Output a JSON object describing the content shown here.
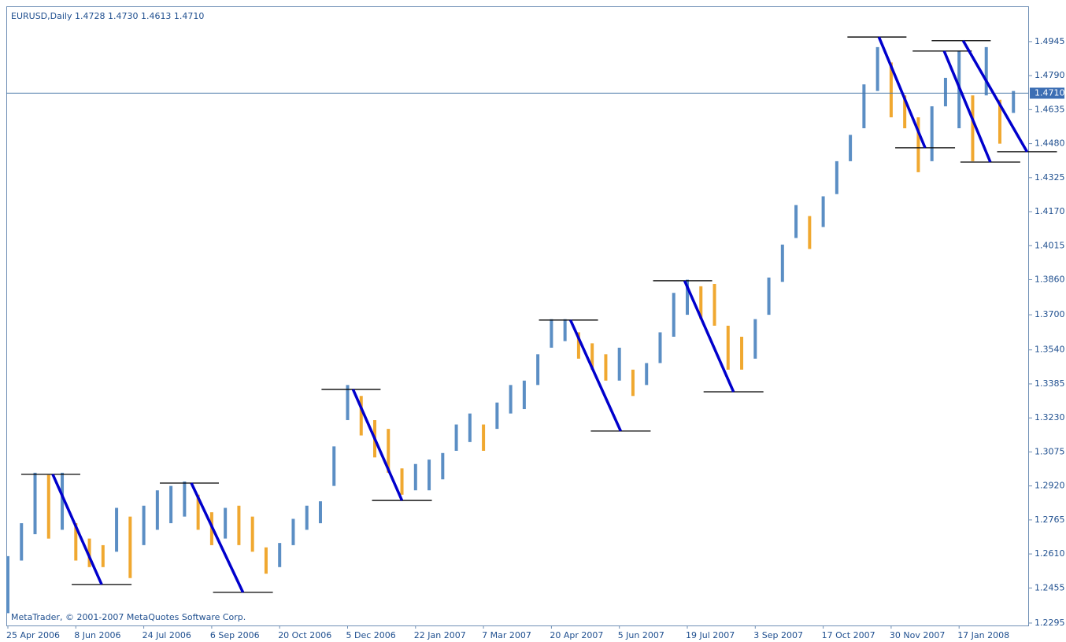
{
  "chart_data": {
    "type": "hlbar",
    "title": "EURUSD,Daily  1.4728 1.4730 1.4613 1.4710",
    "footer": "MetaTrader, © 2001-2007 MetaQuotes Software Corp.",
    "up_color": "#5b8ec4",
    "down_color": "#f0a830",
    "channel_color": "#0000cc",
    "level_color": "#000000",
    "categories": [
      "25 Apr 2006",
      null,
      null,
      null,
      null,
      "8 Jun 2006",
      null,
      null,
      null,
      null,
      "24 Jul 2006",
      null,
      null,
      null,
      null,
      "6 Sep 2006",
      null,
      null,
      null,
      null,
      "20 Oct 2006",
      null,
      null,
      null,
      null,
      "5 Dec 2006",
      null,
      null,
      null,
      null,
      "22 Jan 2007",
      null,
      null,
      null,
      null,
      "7 Mar 2007",
      null,
      null,
      null,
      null,
      "20 Apr 2007",
      null,
      null,
      null,
      null,
      "5 Jun 2007",
      null,
      null,
      null,
      null,
      "19 Jul 2007",
      null,
      null,
      null,
      null,
      "3 Sep 2007",
      null,
      null,
      null,
      null,
      "17 Oct 2007",
      null,
      null,
      null,
      null,
      "30 Nov 2007",
      null,
      null,
      null,
      null,
      "17 Jan 2008",
      null,
      null,
      null,
      null
    ],
    "high": [
      1.26,
      1.275,
      1.298,
      1.297,
      1.298,
      1.275,
      1.268,
      1.265,
      1.282,
      1.278,
      1.283,
      1.29,
      1.292,
      1.294,
      1.288,
      1.28,
      1.282,
      1.283,
      1.278,
      1.264,
      1.266,
      1.277,
      1.283,
      1.285,
      1.31,
      1.338,
      1.333,
      1.322,
      1.318,
      1.3,
      1.302,
      1.304,
      1.307,
      1.32,
      1.325,
      1.32,
      1.33,
      1.338,
      1.34,
      1.352,
      1.368,
      1.368,
      1.362,
      1.357,
      1.352,
      1.355,
      1.345,
      1.348,
      1.362,
      1.38,
      1.386,
      1.383,
      1.384,
      1.365,
      1.36,
      1.368,
      1.387,
      1.402,
      1.42,
      1.415,
      1.424,
      1.44,
      1.452,
      1.475,
      1.492,
      1.485,
      1.47,
      1.46,
      1.465,
      1.478,
      1.49,
      1.47,
      1.492,
      1.468,
      1.472
    ],
    "low": [
      1.234,
      1.258,
      1.27,
      1.268,
      1.272,
      1.258,
      1.255,
      1.255,
      1.262,
      1.25,
      1.265,
      1.272,
      1.275,
      1.278,
      1.272,
      1.265,
      1.268,
      1.265,
      1.262,
      1.252,
      1.255,
      1.265,
      1.272,
      1.275,
      1.292,
      1.322,
      1.315,
      1.305,
      1.298,
      1.288,
      1.29,
      1.29,
      1.295,
      1.308,
      1.312,
      1.308,
      1.318,
      1.325,
      1.327,
      1.338,
      1.355,
      1.358,
      1.35,
      1.345,
      1.34,
      1.34,
      1.333,
      1.338,
      1.348,
      1.36,
      1.37,
      1.368,
      1.365,
      1.345,
      1.345,
      1.35,
      1.37,
      1.385,
      1.405,
      1.4,
      1.41,
      1.425,
      1.44,
      1.455,
      1.472,
      1.46,
      1.455,
      1.435,
      1.44,
      1.465,
      1.455,
      1.44,
      1.47,
      1.448,
      1.462
    ],
    "channels": [
      {
        "start": 3.3,
        "end": 6.9,
        "high": 1.2973,
        "low": 1.2471
      },
      {
        "start": 13.5,
        "end": 17.3,
        "high": 1.2933,
        "low": 1.2435
      },
      {
        "start": 25.4,
        "end": 29.0,
        "high": 1.336,
        "low": 1.2854
      },
      {
        "start": 41.4,
        "end": 45.1,
        "high": 1.3676,
        "low": 1.317
      },
      {
        "start": 49.8,
        "end": 53.4,
        "high": 1.3855,
        "low": 1.3349
      },
      {
        "start": 64.1,
        "end": 67.5,
        "high": 1.4966,
        "low": 1.4461
      },
      {
        "start": 68.9,
        "end": 72.3,
        "high": 1.4902,
        "low": 1.4396
      },
      {
        "start": 70.3,
        "end": 75.0,
        "high": 1.4949,
        "low": 1.4443
      }
    ],
    "last_price": 1.471,
    "last_price_label": "1.4710",
    "ylim": [
      1.2284,
      1.5106
    ],
    "yticks": [
      1.2295,
      1.2455,
      {
        "value": 1.261,
        "label": "1.2610"
      },
      1.2765,
      {
        "value": 1.292,
        "label": "1.2920"
      },
      1.3075,
      {
        "value": 1.323,
        "label": "1.3230"
      },
      1.3385,
      {
        "value": 1.354,
        "label": "1.3540"
      },
      {
        "value": 1.37,
        "label": "1.3700"
      },
      {
        "value": 1.386,
        "label": "1.3860"
      },
      1.4015,
      {
        "value": 1.417,
        "label": "1.4170"
      },
      1.4325,
      {
        "value": 1.448,
        "label": "1.4480"
      },
      1.4635,
      {
        "value": 1.479,
        "label": "1.4790"
      },
      1.4945
    ]
  }
}
